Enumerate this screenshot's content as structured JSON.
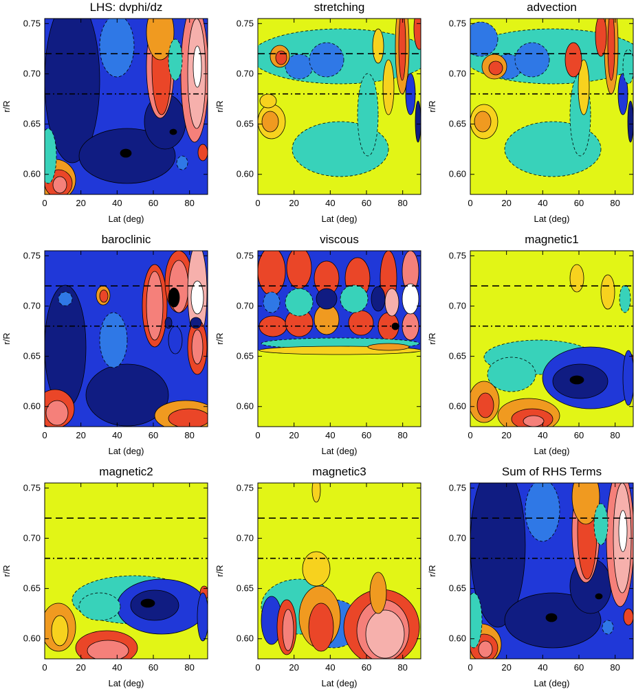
{
  "palette": {
    "bg": "#e2f516",
    "navy": "#101c82",
    "blue": "#2038d8",
    "mid": "#2f78e6",
    "teal": "#38d2ba",
    "yellow": "#f7d21e",
    "orange": "#f09a20",
    "red": "#ea4628",
    "salmon": "#f5807a",
    "pink": "#f6b0ac",
    "white": "#ffffff",
    "black": "#000000"
  },
  "chart_data": [
    {
      "type": "heatmap",
      "title": "LHS: dvphi/dz",
      "xlabel": "Lat (deg)",
      "ylabel": "r/R",
      "xlim": [
        0,
        90
      ],
      "ylim": [
        0.58,
        0.755
      ],
      "xticks": [
        "0",
        "20",
        "40",
        "60",
        "80"
      ],
      "yticks": [
        "0.60",
        "0.65",
        "0.70",
        "0.75"
      ],
      "reference_lines": [
        {
          "y": 0.72,
          "style": "dashed"
        },
        {
          "y": 0.68,
          "style": "dash-dot"
        }
      ]
    },
    {
      "type": "heatmap",
      "title": "stretching",
      "xlabel": "Lat (deg)",
      "ylabel": "r/R",
      "xlim": [
        0,
        90
      ],
      "ylim": [
        0.58,
        0.755
      ],
      "xticks": [
        "0",
        "20",
        "40",
        "60",
        "80"
      ],
      "yticks": [
        "0.60",
        "0.65",
        "0.70",
        "0.75"
      ],
      "reference_lines": [
        {
          "y": 0.72,
          "style": "dashed"
        },
        {
          "y": 0.68,
          "style": "dash-dot"
        }
      ]
    },
    {
      "type": "heatmap",
      "title": "advection",
      "xlabel": "Lat (deg)",
      "ylabel": "r/R",
      "xlim": [
        0,
        90
      ],
      "ylim": [
        0.58,
        0.755
      ],
      "xticks": [
        "0",
        "20",
        "40",
        "60",
        "80"
      ],
      "yticks": [
        "0.60",
        "0.65",
        "0.70",
        "0.75"
      ],
      "reference_lines": [
        {
          "y": 0.72,
          "style": "dashed"
        },
        {
          "y": 0.68,
          "style": "dash-dot"
        }
      ]
    },
    {
      "type": "heatmap",
      "title": "baroclinic",
      "xlabel": "Lat (deg)",
      "ylabel": "r/R",
      "xlim": [
        0,
        90
      ],
      "ylim": [
        0.58,
        0.755
      ],
      "xticks": [
        "0",
        "20",
        "40",
        "60",
        "80"
      ],
      "yticks": [
        "0.60",
        "0.65",
        "0.70",
        "0.75"
      ],
      "reference_lines": [
        {
          "y": 0.72,
          "style": "dashed"
        },
        {
          "y": 0.68,
          "style": "dash-dot"
        }
      ]
    },
    {
      "type": "heatmap",
      "title": "viscous",
      "xlabel": "Lat (deg)",
      "ylabel": "r/R",
      "xlim": [
        0,
        90
      ],
      "ylim": [
        0.58,
        0.755
      ],
      "xticks": [
        "0",
        "20",
        "40",
        "60",
        "80"
      ],
      "yticks": [
        "0.60",
        "0.65",
        "0.70",
        "0.75"
      ],
      "reference_lines": [
        {
          "y": 0.72,
          "style": "dashed"
        },
        {
          "y": 0.68,
          "style": "dash-dot"
        }
      ]
    },
    {
      "type": "heatmap",
      "title": "magnetic1",
      "xlabel": "Lat (deg)",
      "ylabel": "r/R",
      "xlim": [
        0,
        90
      ],
      "ylim": [
        0.58,
        0.755
      ],
      "xticks": [
        "0",
        "20",
        "40",
        "60",
        "80"
      ],
      "yticks": [
        "0.60",
        "0.65",
        "0.70",
        "0.75"
      ],
      "reference_lines": [
        {
          "y": 0.72,
          "style": "dashed"
        },
        {
          "y": 0.68,
          "style": "dash-dot"
        }
      ]
    },
    {
      "type": "heatmap",
      "title": "magnetic2",
      "xlabel": "Lat (deg)",
      "ylabel": "r/R",
      "xlim": [
        0,
        90
      ],
      "ylim": [
        0.58,
        0.755
      ],
      "xticks": [
        "0",
        "20",
        "40",
        "60",
        "80"
      ],
      "yticks": [
        "0.60",
        "0.65",
        "0.70",
        "0.75"
      ],
      "reference_lines": [
        {
          "y": 0.72,
          "style": "dashed"
        },
        {
          "y": 0.68,
          "style": "dash-dot"
        }
      ]
    },
    {
      "type": "heatmap",
      "title": "magnetic3",
      "xlabel": "Lat (deg)",
      "ylabel": "r/R",
      "xlim": [
        0,
        90
      ],
      "ylim": [
        0.58,
        0.755
      ],
      "xticks": [
        "0",
        "20",
        "40",
        "60",
        "80"
      ],
      "yticks": [
        "0.60",
        "0.65",
        "0.70",
        "0.75"
      ],
      "reference_lines": [
        {
          "y": 0.72,
          "style": "dashed"
        },
        {
          "y": 0.68,
          "style": "dash-dot"
        }
      ]
    },
    {
      "type": "heatmap",
      "title": "Sum of RHS Terms",
      "xlabel": "Lat (deg)",
      "ylabel": "r/R",
      "xlim": [
        0,
        90
      ],
      "ylim": [
        0.58,
        0.755
      ],
      "xticks": [
        "0",
        "20",
        "40",
        "60",
        "80"
      ],
      "yticks": [
        "0.60",
        "0.65",
        "0.70",
        "0.75"
      ],
      "reference_lines": [
        {
          "y": 0.72,
          "style": "dashed"
        },
        {
          "y": 0.68,
          "style": "dash-dot"
        }
      ]
    }
  ]
}
